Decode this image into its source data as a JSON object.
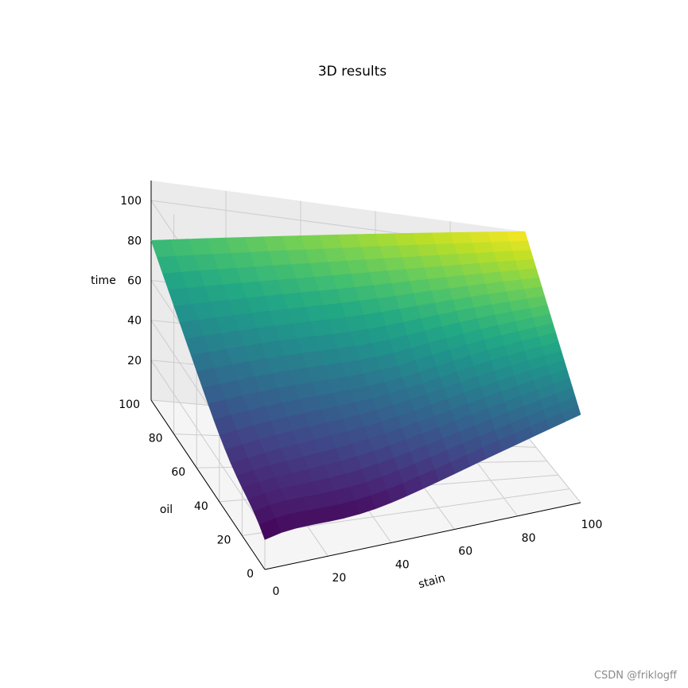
{
  "chart_data": {
    "type": "surface3d",
    "title": "3D results",
    "xlabel": "stain",
    "ylabel": "oil",
    "zlabel": "time",
    "xlim": [
      0,
      100
    ],
    "ylim": [
      0,
      100
    ],
    "zlim": [
      0,
      110
    ],
    "x_ticks": [
      0,
      20,
      40,
      60,
      80,
      100
    ],
    "y_ticks": [
      0,
      20,
      40,
      60,
      80,
      100
    ],
    "z_ticks": [
      20,
      40,
      60,
      80,
      100
    ],
    "colormap": "viridis",
    "grid": true,
    "grid_x": [
      0,
      5,
      10,
      15,
      20,
      25,
      30,
      35,
      40,
      45,
      50,
      55,
      60,
      65,
      70,
      75,
      80,
      85,
      90,
      95,
      100
    ],
    "grid_y": [
      0,
      5,
      10,
      15,
      20,
      25,
      30,
      35,
      40,
      45,
      50,
      55,
      60,
      65,
      70,
      75,
      80,
      85,
      90,
      95,
      100
    ],
    "corner_values": {
      "stain_0_oil_0": 1,
      "stain_100_oil_0": 48,
      "stain_0_oil_100": 80,
      "stain_100_oil_100": 110
    },
    "colormap_stops": [
      "#440154",
      "#482475",
      "#414487",
      "#355f8d",
      "#2a788e",
      "#21918c",
      "#22a884",
      "#44bf70",
      "#7ad151",
      "#bddf26",
      "#fde725"
    ]
  },
  "watermark": "CSDN @friklogff"
}
